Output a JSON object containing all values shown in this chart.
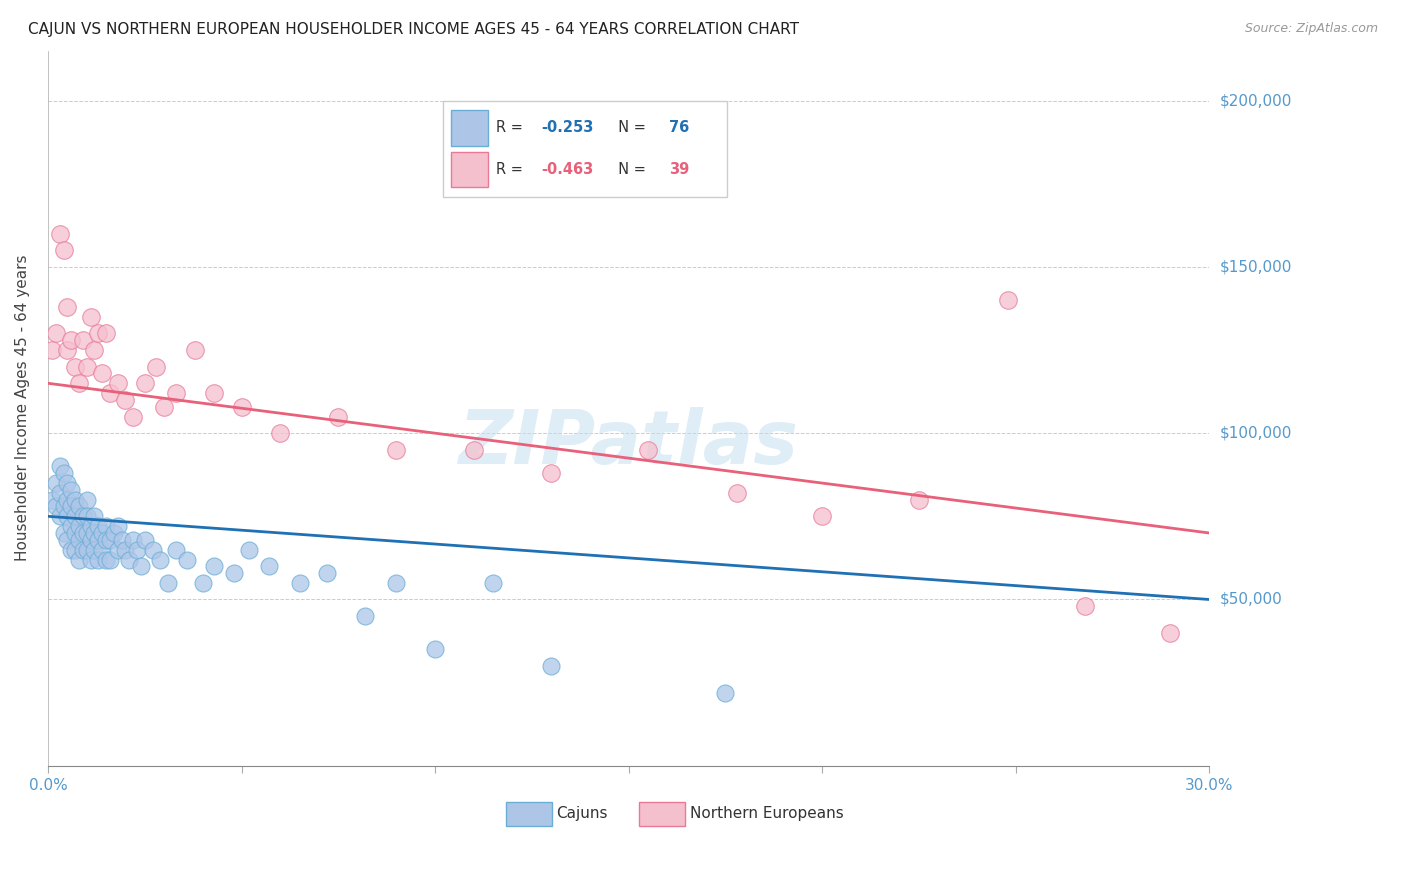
{
  "title": "CAJUN VS NORTHERN EUROPEAN HOUSEHOLDER INCOME AGES 45 - 64 YEARS CORRELATION CHART",
  "source": "Source: ZipAtlas.com",
  "ylabel": "Householder Income Ages 45 - 64 years",
  "xlim": [
    0.0,
    0.3
  ],
  "ylim": [
    0,
    215000
  ],
  "ytick_values": [
    0,
    50000,
    100000,
    150000,
    200000
  ],
  "ytick_labels": [
    "",
    "$50,000",
    "$100,000",
    "$150,000",
    "$200,000"
  ],
  "cajun_color": "#adc6e8",
  "cajun_edge_color": "#6aaed6",
  "northern_color": "#f5c0ce",
  "northern_edge_color": "#e87a98",
  "line_blue": "#2070b4",
  "line_pink": "#e8607a",
  "watermark": "ZIPatlas",
  "axis_color": "#5599cc",
  "grid_color": "#cccccc",
  "cajun_x": [
    0.001,
    0.002,
    0.002,
    0.003,
    0.003,
    0.003,
    0.004,
    0.004,
    0.004,
    0.005,
    0.005,
    0.005,
    0.005,
    0.006,
    0.006,
    0.006,
    0.006,
    0.007,
    0.007,
    0.007,
    0.007,
    0.008,
    0.008,
    0.008,
    0.008,
    0.009,
    0.009,
    0.009,
    0.01,
    0.01,
    0.01,
    0.01,
    0.011,
    0.011,
    0.011,
    0.012,
    0.012,
    0.012,
    0.013,
    0.013,
    0.013,
    0.014,
    0.014,
    0.015,
    0.015,
    0.015,
    0.016,
    0.016,
    0.017,
    0.018,
    0.018,
    0.019,
    0.02,
    0.021,
    0.022,
    0.023,
    0.024,
    0.025,
    0.027,
    0.029,
    0.031,
    0.033,
    0.036,
    0.04,
    0.043,
    0.048,
    0.052,
    0.057,
    0.065,
    0.072,
    0.082,
    0.09,
    0.1,
    0.115,
    0.13,
    0.175
  ],
  "cajun_y": [
    80000,
    85000,
    78000,
    90000,
    82000,
    75000,
    88000,
    78000,
    70000,
    85000,
    80000,
    75000,
    68000,
    83000,
    78000,
    72000,
    65000,
    80000,
    75000,
    70000,
    65000,
    78000,
    72000,
    68000,
    62000,
    75000,
    70000,
    65000,
    80000,
    75000,
    70000,
    65000,
    72000,
    68000,
    62000,
    75000,
    70000,
    65000,
    72000,
    68000,
    62000,
    70000,
    65000,
    72000,
    68000,
    62000,
    68000,
    62000,
    70000,
    72000,
    65000,
    68000,
    65000,
    62000,
    68000,
    65000,
    60000,
    68000,
    65000,
    62000,
    55000,
    65000,
    62000,
    55000,
    60000,
    58000,
    65000,
    60000,
    55000,
    58000,
    45000,
    55000,
    35000,
    55000,
    30000,
    22000
  ],
  "northern_x": [
    0.001,
    0.002,
    0.003,
    0.004,
    0.005,
    0.005,
    0.006,
    0.007,
    0.008,
    0.009,
    0.01,
    0.011,
    0.012,
    0.013,
    0.014,
    0.015,
    0.016,
    0.018,
    0.02,
    0.022,
    0.025,
    0.028,
    0.03,
    0.033,
    0.038,
    0.043,
    0.05,
    0.06,
    0.075,
    0.09,
    0.11,
    0.13,
    0.155,
    0.178,
    0.2,
    0.225,
    0.248,
    0.268,
    0.29
  ],
  "northern_y": [
    125000,
    130000,
    160000,
    155000,
    125000,
    138000,
    128000,
    120000,
    115000,
    128000,
    120000,
    135000,
    125000,
    130000,
    118000,
    130000,
    112000,
    115000,
    110000,
    105000,
    115000,
    120000,
    108000,
    112000,
    125000,
    112000,
    108000,
    100000,
    105000,
    95000,
    95000,
    88000,
    95000,
    82000,
    75000,
    80000,
    140000,
    48000,
    40000
  ]
}
